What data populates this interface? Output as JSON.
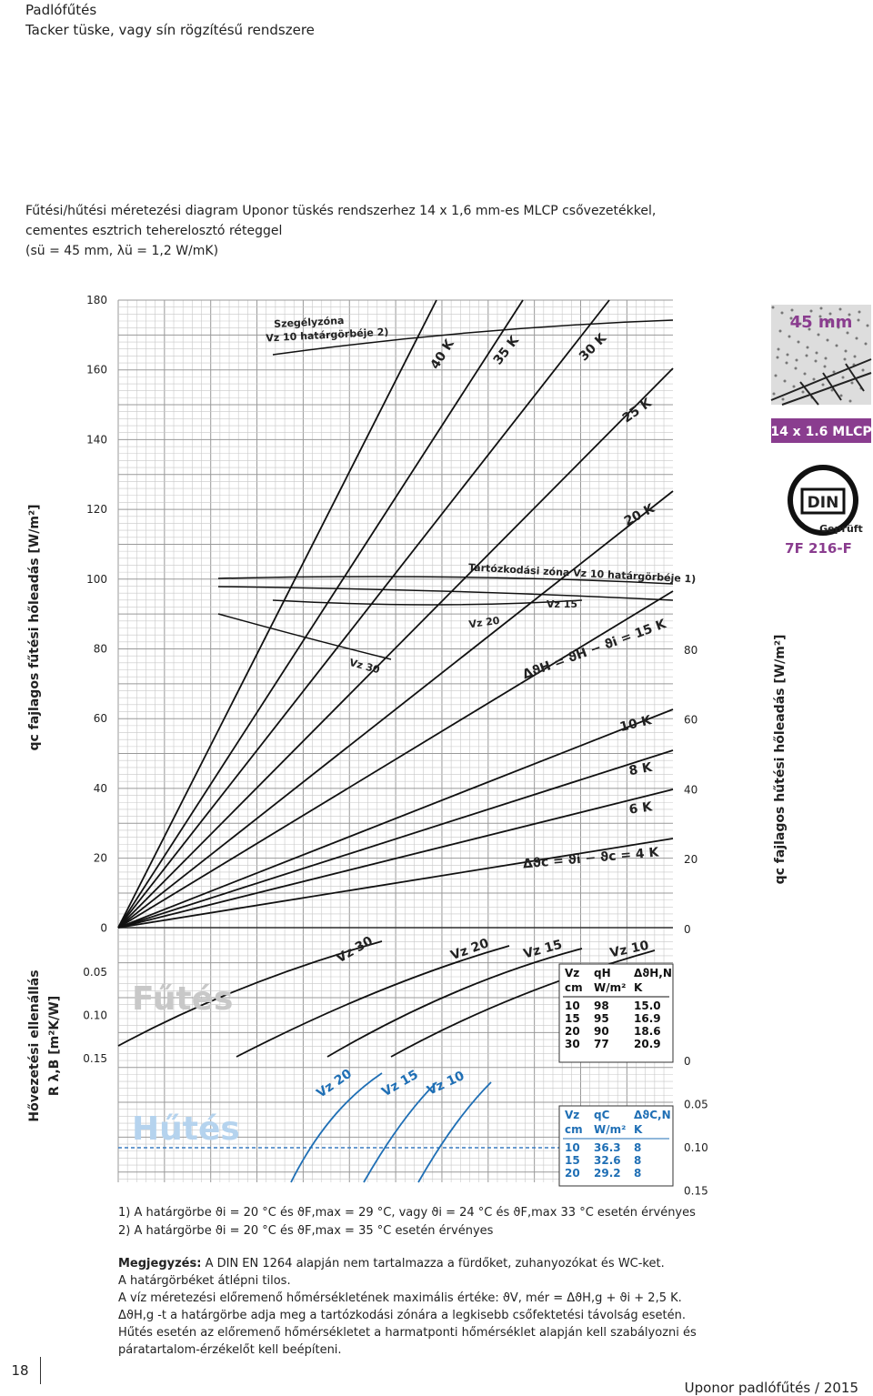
{
  "header": {
    "title": "Padlófűtés",
    "subtitle": "Tacker tüske, vagy sín rögzítésű rendszere"
  },
  "intro": [
    "Fűtési/hűtési méretezési diagram Uponor tüskés rendszerhez 14 x 1,6 mm-es MLCP csővezetékkel,",
    "cementes esztrich teherelosztó réteggel",
    "(sü = 45 mm, λü = 1,2 W/mK)"
  ],
  "chart": {
    "left_axis_label": "qc fajlagos fűtési hőleadás [W/m²]",
    "right_axis_label": "qc fajlagos hűtési hőleadás [W/m²]",
    "resistance_label": [
      "Hővezetési ellenállás",
      "R λ,B [m²K/W]"
    ],
    "left_ticks": [
      "180",
      "160",
      "140",
      "120",
      "100",
      "80",
      "60",
      "40",
      "20",
      "0"
    ],
    "right_ticks": [
      "80",
      "60",
      "40",
      "20",
      "0"
    ],
    "resistance_left_ticks": [
      "0.05",
      "0.10",
      "0.15"
    ],
    "resistance_right_ticks": [
      "0",
      "0.05",
      "0.10",
      "0.15"
    ],
    "heating_lines": [
      "40 K",
      "35 K",
      "30 K",
      "25 K",
      "20 K",
      "ΔϑH = ϑH − ϑi = 15 K",
      "10 K",
      "8 K",
      "6 K",
      "Δϑc = ϑi − ϑc = 4 K"
    ],
    "annotations": [
      "Szegélyzóna",
      "Vz 10 határgörbéje 2)",
      "Tartózkodási zóna Vz 10 határgörbéje 1)",
      "Vz 15",
      "Vz 20",
      "Vz 30"
    ],
    "heating_curves": [
      "Vz 30",
      "Vz 20",
      "Vz 15",
      "Vz 10"
    ],
    "cooling_curves": [
      "Vz 20",
      "Vz 15",
      "Vz 10"
    ],
    "heating_label": "Fűtés",
    "cooling_label": "Hűtés",
    "heating_table": {
      "header": [
        [
          "Vz",
          "qH",
          "ΔϑH,N"
        ],
        [
          "cm",
          "W/m²",
          "K"
        ]
      ],
      "rows": [
        [
          "10",
          "98",
          "15.0"
        ],
        [
          "15",
          "95",
          "16.9"
        ],
        [
          "20",
          "90",
          "18.6"
        ],
        [
          "30",
          "77",
          "20.9"
        ]
      ]
    },
    "cooling_table": {
      "header": [
        [
          "Vz",
          "qC",
          "ΔϑC,N"
        ],
        [
          "cm",
          "W/m²",
          "K"
        ]
      ],
      "rows": [
        [
          "10",
          "36.3",
          "8"
        ],
        [
          "15",
          "32.6",
          "8"
        ],
        [
          "20",
          "29.2",
          "8"
        ]
      ]
    }
  },
  "badges": {
    "thickness": "45 mm",
    "pipe": "14 x 1.6 MLCP",
    "din": "DIN",
    "geprueft": "Geprüft",
    "reg": "7F 216-F"
  },
  "footnotes": [
    "1) A határgörbe ϑi = 20 °C és ϑF,max = 29 °C, vagy ϑi = 24 °C és ϑF,max 33 °C esetén érvényes",
    "2) A határgörbe ϑi = 20 °C és ϑF,max = 35 °C esetén érvényes"
  ],
  "note": {
    "label": "Megjegyzés:",
    "lines": [
      " A DIN EN 1264 alapján nem tartalmazza a fürdőket, zuhanyozókat és WC-ket.",
      "A határgörbéket átlépni tilos.",
      "A víz méretezési előremenő hőmérsékletének maximális értéke: ϑV, mér = ΔϑH,g + ϑi + 2,5 K.",
      "ΔϑH,g -t a határgörbe adja meg a tartózkodási zónára a legkisebb csőfektetési távolság esetén.",
      "Hűtés esetén az előremenő hőmérsékletet a harmatponti hőmérséklet alapján kell szabályozni és",
      "páratartalom-érzékelőt kell beépíteni."
    ]
  },
  "footer": {
    "page": "18",
    "brand": "Uponor padlófűtés / 2015"
  }
}
